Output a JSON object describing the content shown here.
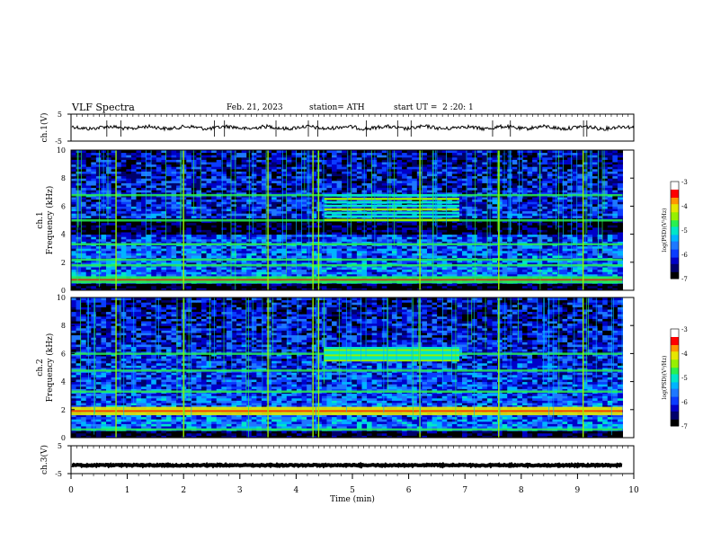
{
  "header": {
    "title": "VLF Spectra",
    "date": "Feb. 21, 2023",
    "station": "station= ATH",
    "start": "start UT =  2 :20: 1"
  },
  "chart_data": [
    {
      "type": "line",
      "panel": "ch1-waveform",
      "ylabel": "ch.1(V)",
      "yticks": [
        "5",
        "-5"
      ],
      "ylim": [
        -5,
        5
      ],
      "xlim": [
        0,
        10
      ],
      "trace_level": 0,
      "color": "#000000"
    },
    {
      "type": "heatmap",
      "panel": "ch1-spectrogram",
      "ylabel": [
        "ch.1",
        "Frequency (kHz)"
      ],
      "yticks": [
        "0",
        "2",
        "4",
        "6",
        "8",
        "10"
      ],
      "ylim": [
        0,
        10
      ],
      "xlim": [
        0,
        9.8
      ],
      "colorbar": {
        "label": "log(PSD)(V²/Hz)",
        "ticks": [
          "-3",
          "-4",
          "-5",
          "-6",
          "-7"
        ],
        "range": [
          -7,
          -3
        ]
      },
      "features": {
        "strong_band_khz": [
          0.5,
          1.0
        ],
        "bands_khz": [
          1.8,
          2.2,
          3.3,
          5.0,
          6.8
        ],
        "quiet_band_khz": [
          4.0,
          5.0
        ],
        "burst": {
          "t_min": [
            4.5,
            6.9
          ],
          "f_khz": [
            5.0,
            7.0
          ]
        },
        "bright_line_t_min": [
          0.8,
          2.0,
          3.5,
          4.3,
          4.4,
          6.2,
          7.6,
          9.1
        ]
      }
    },
    {
      "type": "heatmap",
      "panel": "ch2-spectrogram",
      "ylabel": [
        "ch.2",
        "Frequency (kHz)"
      ],
      "yticks": [
        "0",
        "2",
        "4",
        "6",
        "8",
        "10"
      ],
      "ylim": [
        0,
        10
      ],
      "xlim": [
        0,
        9.8
      ],
      "colorbar": {
        "label": "log(PSD)(V²/Hz)",
        "ticks": [
          "-3",
          "-4",
          "-5",
          "-6",
          "-7"
        ],
        "range": [
          -7,
          -3
        ]
      },
      "features": {
        "strong_band_khz": [
          1.6,
          2.2
        ],
        "bands_khz": [
          0.6,
          2.0,
          3.3,
          4.8,
          6.0
        ],
        "burst": {
          "t_min": [
            4.5,
            6.9
          ],
          "f_khz": [
            5.5,
            6.5
          ]
        },
        "bright_line_t_min": [
          0.8,
          2.0,
          3.5,
          4.3,
          4.4,
          6.2,
          7.6,
          9.1
        ]
      }
    },
    {
      "type": "line",
      "panel": "ch3-waveform",
      "ylabel": "ch.3(V)",
      "yticks": [
        "5",
        "-5"
      ],
      "ylim": [
        -5,
        5
      ],
      "xlim": [
        0,
        9.8
      ],
      "trace_level": -2.0,
      "color": "#000000",
      "xlabel": "Time (min)",
      "xticks": [
        "0",
        "1",
        "2",
        "3",
        "4",
        "5",
        "6",
        "7",
        "8",
        "9",
        "10"
      ]
    }
  ]
}
